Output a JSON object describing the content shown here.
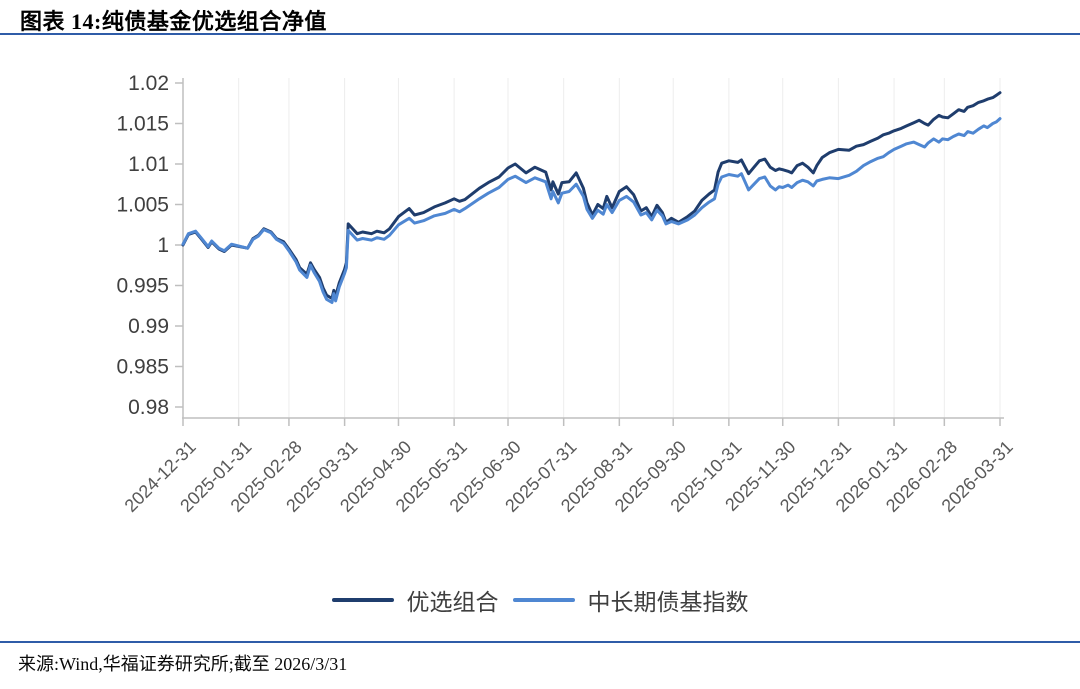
{
  "page": {
    "title": "图表 14:纯债基金优选组合净值",
    "source_note": "来源:Wind,华福证券研究所;截至 2026/3/31",
    "accent_color": "#2f5ca8"
  },
  "chart_data": {
    "type": "line",
    "title": "纯债基金优选组合净值",
    "xlabel": "",
    "ylabel": "",
    "ylim": [
      0.98,
      1.02
    ],
    "xlim_dates": [
      "2024-12-31",
      "2026-03-31"
    ],
    "grid": "faint-vertical-gridlines",
    "legend_position": "bottom",
    "axis_color": "#bfbfbf",
    "gridline_color": "#ededed",
    "y_ticks": [
      1.02,
      1.015,
      1.01,
      1.005,
      1,
      0.995,
      0.99,
      0.985,
      0.98
    ],
    "y_tick_labels": [
      "1.02",
      "1.015",
      "1.01",
      "1.005",
      "1",
      "0.995",
      "0.99",
      "0.985",
      "0.98"
    ],
    "x_tick_labels": [
      "2024-12-31",
      "2025-01-31",
      "2025-02-28",
      "2025-03-31",
      "2025-04-30",
      "2025-05-31",
      "2025-06-30",
      "2025-07-31",
      "2025-08-31",
      "2025-09-30",
      "2025-10-31",
      "2025-11-30",
      "2025-12-31",
      "2026-01-31",
      "2026-02-28",
      "2026-03-31"
    ],
    "dates": [
      "2024-12-31",
      "2025-01-03",
      "2025-01-07",
      "2025-01-10",
      "2025-01-14",
      "2025-01-16",
      "2025-01-20",
      "2025-01-23",
      "2025-01-27",
      "2025-02-05",
      "2025-02-08",
      "2025-02-11",
      "2025-02-14",
      "2025-02-18",
      "2025-02-21",
      "2025-02-25",
      "2025-02-28",
      "2025-03-04",
      "2025-03-06",
      "2025-03-10",
      "2025-03-12",
      "2025-03-14",
      "2025-03-17",
      "2025-03-19",
      "2025-03-21",
      "2025-03-24",
      "2025-03-25",
      "2025-03-26",
      "2025-03-28",
      "2025-03-31",
      "2025-04-01",
      "2025-04-02",
      "2025-04-07",
      "2025-04-10",
      "2025-04-15",
      "2025-04-18",
      "2025-04-22",
      "2025-04-25",
      "2025-04-30",
      "2025-05-06",
      "2025-05-09",
      "2025-05-14",
      "2025-05-20",
      "2025-05-26",
      "2025-05-31",
      "2025-06-03",
      "2025-06-06",
      "2025-06-14",
      "2025-06-19",
      "2025-06-25",
      "2025-06-30",
      "2025-07-04",
      "2025-07-10",
      "2025-07-15",
      "2025-07-21",
      "2025-07-24",
      "2025-07-25",
      "2025-07-28",
      "2025-07-30",
      "2025-08-03",
      "2025-08-07",
      "2025-08-11",
      "2025-08-13",
      "2025-08-16",
      "2025-08-19",
      "2025-08-22",
      "2025-08-24",
      "2025-08-27",
      "2025-08-31",
      "2025-09-04",
      "2025-09-08",
      "2025-09-12",
      "2025-09-15",
      "2025-09-18",
      "2025-09-21",
      "2025-09-24",
      "2025-09-26",
      "2025-09-29",
      "2025-10-03",
      "2025-10-08",
      "2025-10-12",
      "2025-10-16",
      "2025-10-20",
      "2025-10-23",
      "2025-10-25",
      "2025-10-27",
      "2025-10-31",
      "2025-11-05",
      "2025-11-07",
      "2025-11-11",
      "2025-11-14",
      "2025-11-17",
      "2025-11-20",
      "2025-11-23",
      "2025-11-26",
      "2025-11-28",
      "2025-11-30",
      "2025-12-03",
      "2025-12-05",
      "2025-12-08",
      "2025-12-11",
      "2025-12-14",
      "2025-12-17",
      "2025-12-19",
      "2025-12-22",
      "2025-12-26",
      "2025-12-31",
      "2026-01-06",
      "2026-01-10",
      "2026-01-14",
      "2026-01-18",
      "2026-01-22",
      "2026-01-25",
      "2026-01-28",
      "2026-01-31",
      "2026-02-04",
      "2026-02-07",
      "2026-02-11",
      "2026-02-14",
      "2026-02-17",
      "2026-02-19",
      "2026-02-22",
      "2026-02-25",
      "2026-02-27",
      "2026-03-02",
      "2026-03-05",
      "2026-03-08",
      "2026-03-11",
      "2026-03-13",
      "2026-03-16",
      "2026-03-19",
      "2026-03-22",
      "2026-03-24",
      "2026-03-27",
      "2026-03-29",
      "2026-03-31"
    ],
    "series": [
      {
        "name": "优选组合",
        "color": "#1f3d6d",
        "values": [
          1.0,
          1.0013,
          1.0016,
          1.0008,
          0.9997,
          1.0004,
          0.9995,
          0.9992,
          1.0,
          0.9996,
          1.0008,
          1.0012,
          1.002,
          1.0016,
          1.0008,
          1.0004,
          0.9995,
          0.9982,
          0.9972,
          0.9964,
          0.9978,
          0.997,
          0.996,
          0.9947,
          0.9938,
          0.9934,
          0.9944,
          0.9937,
          0.9953,
          0.997,
          0.9978,
          1.0026,
          1.0014,
          1.0016,
          1.0014,
          1.0017,
          1.0015,
          1.002,
          1.0035,
          1.0045,
          1.0037,
          1.004,
          1.0047,
          1.0052,
          1.0057,
          1.0054,
          1.0056,
          1.007,
          1.0077,
          1.0084,
          1.0095,
          1.01,
          1.0089,
          1.0096,
          1.009,
          1.0068,
          1.0078,
          1.0063,
          1.0077,
          1.0078,
          1.0089,
          1.007,
          1.0052,
          1.0037,
          1.005,
          1.0045,
          1.006,
          1.0046,
          1.0066,
          1.0072,
          1.0062,
          1.0042,
          1.0046,
          1.0035,
          1.0049,
          1.004,
          1.0028,
          1.0033,
          1.0028,
          1.0035,
          1.0042,
          1.0055,
          1.0063,
          1.0068,
          1.009,
          1.0101,
          1.0104,
          1.0102,
          1.0105,
          1.0088,
          1.0096,
          1.0104,
          1.0106,
          1.0096,
          1.0092,
          1.0094,
          1.0093,
          1.0091,
          1.0089,
          1.0098,
          1.0101,
          1.0096,
          1.0089,
          1.0098,
          1.0108,
          1.0114,
          1.0118,
          1.0117,
          1.0122,
          1.0124,
          1.0128,
          1.0132,
          1.0136,
          1.0138,
          1.0141,
          1.0144,
          1.0147,
          1.0151,
          1.0154,
          1.015,
          1.0148,
          1.0155,
          1.016,
          1.0158,
          1.0157,
          1.0162,
          1.0167,
          1.0165,
          1.017,
          1.0172,
          1.0176,
          1.0178,
          1.018,
          1.0182,
          1.0185,
          1.0188
        ]
      },
      {
        "name": "中长期债基指数",
        "color": "#4f87d2",
        "values": [
          1.0001,
          1.0014,
          1.0017,
          1.0009,
          0.9998,
          1.0005,
          0.9996,
          0.9993,
          1.0001,
          0.9996,
          1.0007,
          1.0011,
          1.0019,
          1.0015,
          1.0007,
          1.0002,
          0.9993,
          0.9979,
          0.9969,
          0.996,
          0.9975,
          0.9966,
          0.9955,
          0.9942,
          0.9933,
          0.9929,
          0.994,
          0.9931,
          0.9948,
          0.9965,
          0.9972,
          1.0018,
          1.0006,
          1.0008,
          1.0006,
          1.0009,
          1.0007,
          1.0012,
          1.0025,
          1.0033,
          1.0027,
          1.003,
          1.0036,
          1.0039,
          1.0044,
          1.0041,
          1.0045,
          1.0057,
          1.0064,
          1.0071,
          1.0081,
          1.0085,
          1.0077,
          1.0083,
          1.0078,
          1.0057,
          1.0066,
          1.0052,
          1.0064,
          1.0066,
          1.0075,
          1.006,
          1.0044,
          1.0033,
          1.0043,
          1.0038,
          1.005,
          1.004,
          1.0055,
          1.006,
          1.0053,
          1.0037,
          1.004,
          1.0031,
          1.0043,
          1.0036,
          1.0026,
          1.0029,
          1.0026,
          1.0031,
          1.0037,
          1.0046,
          1.0053,
          1.0057,
          1.0075,
          1.0084,
          1.0087,
          1.0085,
          1.0088,
          1.0068,
          1.0075,
          1.0082,
          1.0084,
          1.0073,
          1.0068,
          1.0072,
          1.0071,
          1.0074,
          1.0071,
          1.0077,
          1.008,
          1.0078,
          1.0073,
          1.0079,
          1.0081,
          1.0083,
          1.0082,
          1.0086,
          1.0091,
          1.0098,
          1.0103,
          1.0107,
          1.0109,
          1.0114,
          1.0118,
          1.0122,
          1.0125,
          1.0127,
          1.0124,
          1.0121,
          1.0126,
          1.0131,
          1.0127,
          1.0131,
          1.013,
          1.0134,
          1.0137,
          1.0135,
          1.014,
          1.0138,
          1.0143,
          1.0147,
          1.0145,
          1.015,
          1.0152,
          1.0156
        ]
      }
    ]
  }
}
